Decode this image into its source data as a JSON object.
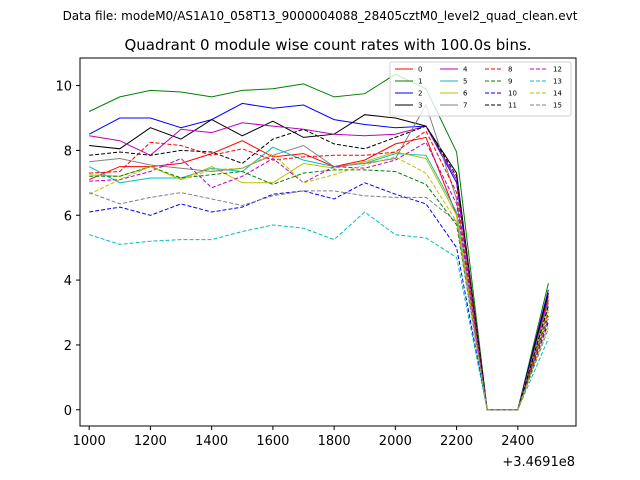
{
  "header": "Data file: modeM0/AS1A10_058T13_9000004088_28405cztM0_level2_quad_clean.evt",
  "chart_data": {
    "type": "line",
    "title": "Quadrant 0 module wise count rates with 100.0s bins.",
    "xlabel": "",
    "ylabel": "",
    "offset_label": "+3.4691e8",
    "xlim": [
      970,
      2590
    ],
    "ylim": [
      -0.5,
      10.85
    ],
    "xticks": [
      1000,
      1200,
      1400,
      1600,
      1800,
      2000,
      2200,
      2400
    ],
    "yticks": [
      0,
      2,
      4,
      6,
      8,
      10
    ],
    "grid": false,
    "legend_position": "top-right",
    "x": [
      1000,
      1100,
      1200,
      1300,
      1400,
      1500,
      1600,
      1700,
      1800,
      1900,
      2000,
      2100,
      2200,
      2300,
      2400,
      2500
    ],
    "series": [
      {
        "name": "0",
        "color": "#ff0000",
        "style": "solid",
        "values": [
          7.1,
          7.5,
          7.5,
          7.6,
          7.9,
          8.3,
          7.8,
          7.9,
          7.5,
          7.7,
          8.2,
          8.4,
          6.0,
          0.0,
          0.0,
          3.5
        ]
      },
      {
        "name": "1",
        "color": "#008000",
        "style": "solid",
        "values": [
          9.2,
          9.65,
          9.85,
          9.8,
          9.65,
          9.85,
          9.9,
          10.05,
          9.65,
          9.75,
          10.35,
          9.9,
          7.95,
          0.0,
          0.0,
          3.9
        ]
      },
      {
        "name": "2",
        "color": "#0000ff",
        "style": "solid",
        "values": [
          8.5,
          9.0,
          9.0,
          8.7,
          8.95,
          9.45,
          9.3,
          9.4,
          8.95,
          8.8,
          8.7,
          8.75,
          7.0,
          0.0,
          0.0,
          3.7
        ]
      },
      {
        "name": "3",
        "color": "#000000",
        "style": "solid",
        "values": [
          8.15,
          8.05,
          8.7,
          8.35,
          8.95,
          8.45,
          8.9,
          8.4,
          8.5,
          9.1,
          9.0,
          8.75,
          7.3,
          0.0,
          0.0,
          3.6
        ]
      },
      {
        "name": "4",
        "color": "#bf00bf",
        "style": "solid",
        "values": [
          8.45,
          8.3,
          7.85,
          8.65,
          8.55,
          8.85,
          8.75,
          8.65,
          8.5,
          8.45,
          8.5,
          8.75,
          7.1,
          0.0,
          0.0,
          3.4
        ]
      },
      {
        "name": "5",
        "color": "#00bfbf",
        "style": "solid",
        "values": [
          7.5,
          7.0,
          7.15,
          7.15,
          7.45,
          7.35,
          8.1,
          7.7,
          7.5,
          7.6,
          7.9,
          7.85,
          6.1,
          0.0,
          0.0,
          3.3
        ]
      },
      {
        "name": "6",
        "color": "#bfbf00",
        "style": "solid",
        "values": [
          7.25,
          7.2,
          7.5,
          7.1,
          7.5,
          7.0,
          7.0,
          7.6,
          7.45,
          7.65,
          7.95,
          7.75,
          6.0,
          0.0,
          0.0,
          3.1
        ]
      },
      {
        "name": "7",
        "color": "#808080",
        "style": "solid",
        "values": [
          7.65,
          7.75,
          7.55,
          7.45,
          7.35,
          7.45,
          7.85,
          8.15,
          7.5,
          7.6,
          7.75,
          9.4,
          6.5,
          0.0,
          0.0,
          3.3
        ]
      },
      {
        "name": "8",
        "color": "#ff0000",
        "style": "dashed",
        "values": [
          7.3,
          7.35,
          8.25,
          8.15,
          7.85,
          8.05,
          7.7,
          7.8,
          7.85,
          7.85,
          7.95,
          8.6,
          6.7,
          0.0,
          0.0,
          3.0
        ]
      },
      {
        "name": "9",
        "color": "#008000",
        "style": "dashed",
        "values": [
          7.2,
          7.2,
          7.5,
          7.15,
          7.25,
          7.35,
          6.95,
          7.3,
          7.4,
          7.4,
          7.35,
          6.95,
          5.7,
          0.0,
          0.0,
          2.9
        ]
      },
      {
        "name": "10",
        "color": "#0000ff",
        "style": "dashed",
        "values": [
          6.1,
          6.25,
          6.0,
          6.35,
          6.1,
          6.25,
          6.65,
          6.75,
          6.5,
          7.0,
          6.65,
          6.35,
          5.0,
          0.0,
          0.0,
          2.7
        ]
      },
      {
        "name": "11",
        "color": "#000000",
        "style": "dashed",
        "values": [
          7.85,
          7.95,
          7.85,
          8.0,
          7.95,
          7.6,
          8.35,
          8.65,
          8.2,
          8.05,
          8.4,
          8.75,
          7.2,
          0.0,
          0.0,
          3.2
        ]
      },
      {
        "name": "12",
        "color": "#bf00bf",
        "style": "dashed",
        "values": [
          7.05,
          7.1,
          7.35,
          7.75,
          6.85,
          7.2,
          7.75,
          7.0,
          7.5,
          7.45,
          7.7,
          8.25,
          6.35,
          0.0,
          0.0,
          2.8
        ]
      },
      {
        "name": "13",
        "color": "#00bfbf",
        "style": "dashed",
        "values": [
          5.4,
          5.1,
          5.2,
          5.25,
          5.25,
          5.5,
          5.7,
          5.6,
          5.25,
          6.1,
          5.4,
          5.3,
          4.7,
          0.0,
          0.0,
          2.2
        ]
      },
      {
        "name": "14",
        "color": "#bfbf00",
        "style": "dashed",
        "values": [
          6.65,
          7.1,
          7.5,
          7.1,
          7.4,
          7.45,
          7.9,
          7.0,
          7.25,
          7.55,
          7.8,
          7.3,
          5.8,
          0.0,
          0.0,
          2.6
        ]
      },
      {
        "name": "15",
        "color": "#808080",
        "style": "dashed",
        "values": [
          6.7,
          6.35,
          6.55,
          6.7,
          6.5,
          6.3,
          6.6,
          6.75,
          6.75,
          6.6,
          6.55,
          6.55,
          5.8,
          0.0,
          0.0,
          2.5
        ]
      }
    ]
  }
}
